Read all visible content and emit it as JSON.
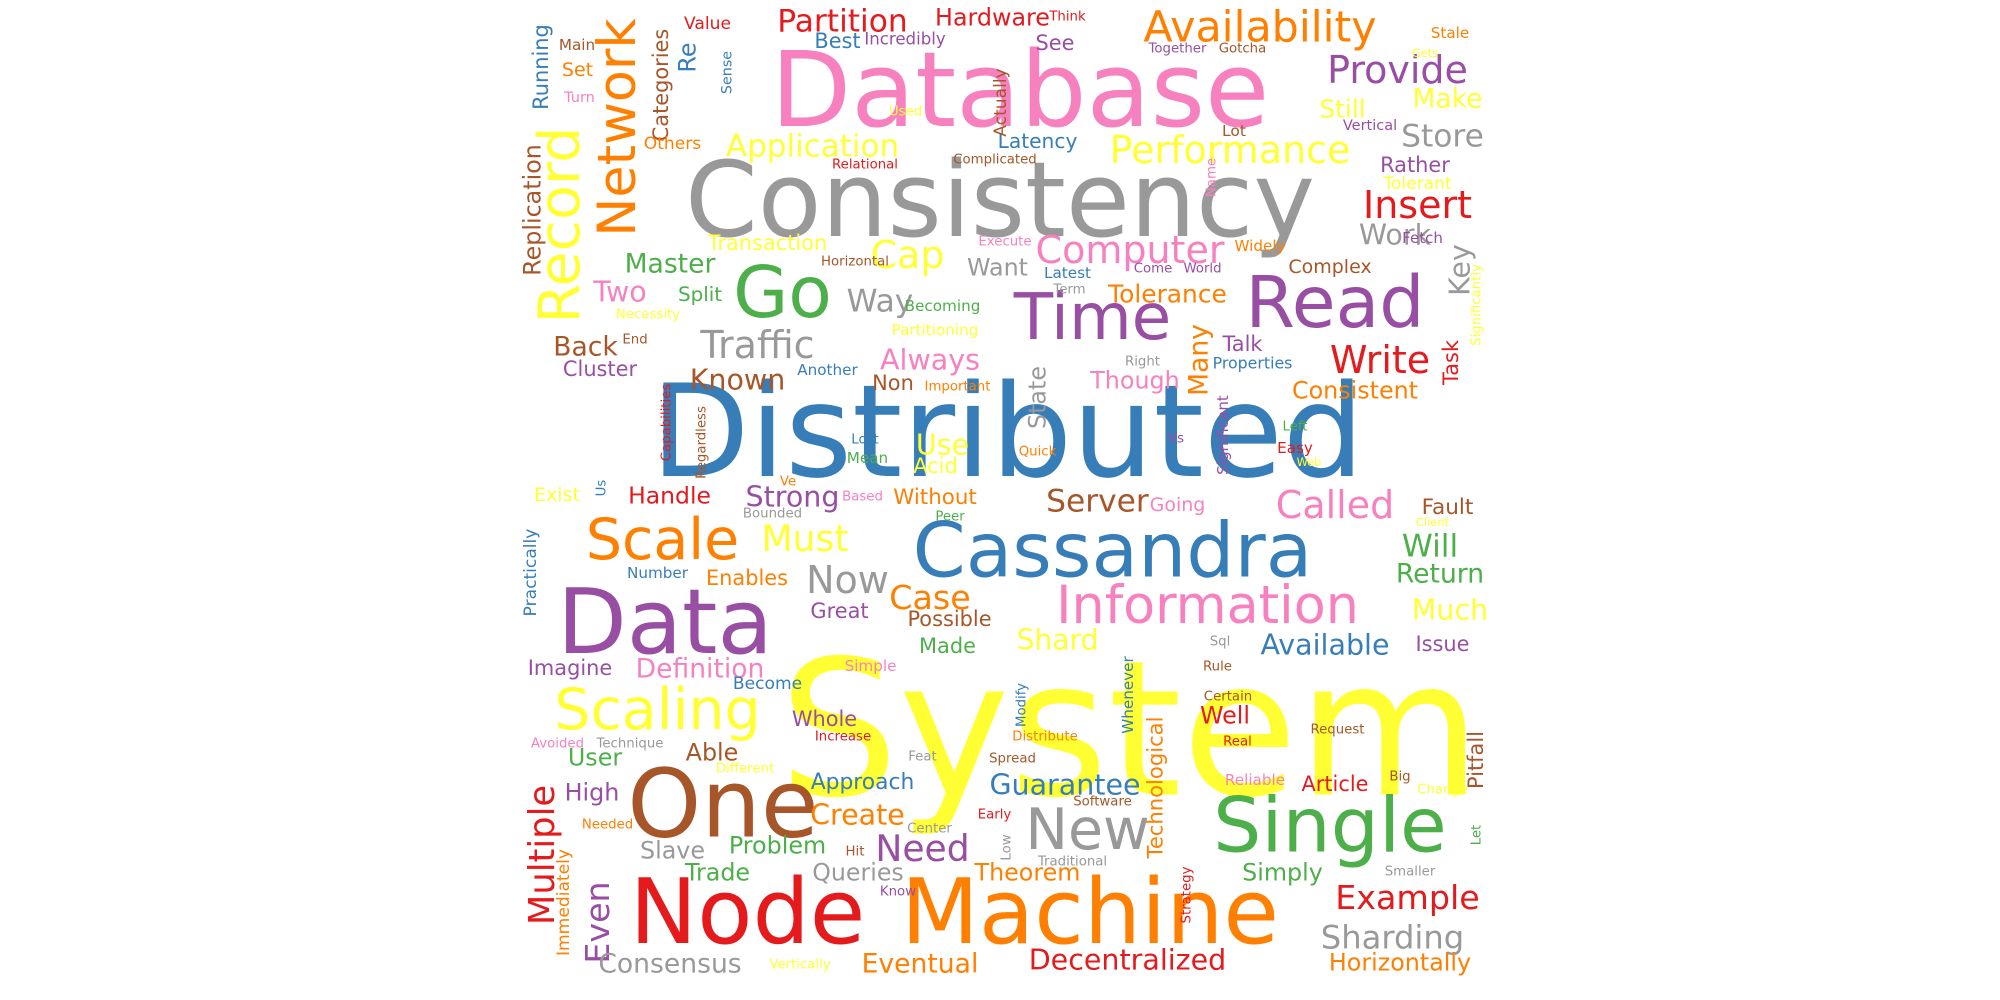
{
  "words": [
    {
      "text": "System",
      "color": "#ffff33"
    },
    {
      "text": "Distributed",
      "color": "#377eb8"
    },
    {
      "text": "Database",
      "color": "#f781bf"
    },
    {
      "text": "Consistency",
      "color": "#999999"
    },
    {
      "text": "Node",
      "color": "#e41a1c"
    },
    {
      "text": "Machine",
      "color": "#ff7f00"
    },
    {
      "text": "Data",
      "color": "#984ea3"
    },
    {
      "text": "Cassandra",
      "color": "#377eb8"
    },
    {
      "text": "One",
      "color": "#a65628"
    },
    {
      "text": "Single",
      "color": "#4daf4a"
    },
    {
      "text": "Time",
      "color": "#984ea3"
    },
    {
      "text": "Read",
      "color": "#984ea3"
    },
    {
      "text": "Information",
      "color": "#f781bf"
    },
    {
      "text": "Network",
      "color": "#ff7f00"
    },
    {
      "text": "Record",
      "color": "#ffff33"
    },
    {
      "text": "Go",
      "color": "#4daf4a"
    },
    {
      "text": "Scale",
      "color": "#ff7f00"
    },
    {
      "text": "Scaling",
      "color": "#ffff33"
    },
    {
      "text": "New",
      "color": "#999999"
    },
    {
      "text": "Availability",
      "color": "#ff7f00"
    },
    {
      "text": "Performance",
      "color": "#ffff33"
    },
    {
      "text": "Computer",
      "color": "#f781bf"
    },
    {
      "text": "Traffic",
      "color": "#999999"
    },
    {
      "text": "Write",
      "color": "#e41a1c"
    },
    {
      "text": "Called",
      "color": "#f781bf"
    },
    {
      "text": "Provide",
      "color": "#984ea3"
    },
    {
      "text": "Insert",
      "color": "#e41a1c"
    },
    {
      "text": "Example",
      "color": "#e41a1c"
    },
    {
      "text": "Sharding",
      "color": "#999999"
    },
    {
      "text": "Decentralized",
      "color": "#e41a1c"
    },
    {
      "text": "Multiple",
      "color": "#e41a1c"
    },
    {
      "text": "Even",
      "color": "#984ea3"
    },
    {
      "text": "Cap",
      "color": "#ffff33"
    },
    {
      "text": "Partition",
      "color": "#e41a1c"
    },
    {
      "text": "Application",
      "color": "#ffff33"
    },
    {
      "text": "Must",
      "color": "#ffff33"
    },
    {
      "text": "Now",
      "color": "#999999"
    },
    {
      "text": "Server",
      "color": "#a65628"
    },
    {
      "text": "Will",
      "color": "#4daf4a"
    },
    {
      "text": "Case",
      "color": "#ff7f00"
    },
    {
      "text": "Need",
      "color": "#984ea3"
    },
    {
      "text": "Available",
      "color": "#377eb8"
    },
    {
      "text": "Guarantee",
      "color": "#377eb8"
    },
    {
      "text": "Shard",
      "color": "#ffff33"
    },
    {
      "text": "Way",
      "color": "#999999"
    },
    {
      "text": "Much",
      "color": "#ffff33"
    },
    {
      "text": "Create",
      "color": "#ff7f00"
    },
    {
      "text": "Consensus",
      "color": "#999999"
    },
    {
      "text": "Eventual",
      "color": "#ff7f00"
    },
    {
      "text": "Horizontally",
      "color": "#ff7f00"
    },
    {
      "text": "Theorem",
      "color": "#ff7f00"
    },
    {
      "text": "Always",
      "color": "#f781bf"
    },
    {
      "text": "Tolerance",
      "color": "#ff7f00"
    },
    {
      "text": "Strong",
      "color": "#984ea3"
    },
    {
      "text": "Known",
      "color": "#a65628"
    },
    {
      "text": "Use",
      "color": "#ffff33"
    },
    {
      "text": "Definition",
      "color": "#f781bf"
    },
    {
      "text": "Simply",
      "color": "#4daf4a"
    },
    {
      "text": "Many",
      "color": "#ff7f00"
    },
    {
      "text": "Technological",
      "color": "#ff7f00"
    },
    {
      "text": "Store",
      "color": "#999999"
    },
    {
      "text": "Make",
      "color": "#ffff33"
    },
    {
      "text": "Still",
      "color": "#ffff33"
    },
    {
      "text": "Hardware",
      "color": "#e41a1c"
    },
    {
      "text": "Return",
      "color": "#4daf4a"
    },
    {
      "text": "Fault",
      "color": "#a65628"
    },
    {
      "text": "Work",
      "color": "#999999"
    },
    {
      "text": "Master",
      "color": "#4daf4a"
    },
    {
      "text": "Back",
      "color": "#a65628"
    },
    {
      "text": "Key",
      "color": "#999999"
    },
    {
      "text": "Replication",
      "color": "#a65628"
    },
    {
      "text": "Transaction",
      "color": "#ffff33"
    },
    {
      "text": "Split",
      "color": "#4daf4a"
    },
    {
      "text": "Two",
      "color": "#f781bf"
    },
    {
      "text": "Queries",
      "color": "#999999"
    },
    {
      "text": "Slave",
      "color": "#999999"
    },
    {
      "text": "Problem",
      "color": "#4daf4a"
    },
    {
      "text": "Trade",
      "color": "#4daf4a"
    },
    {
      "text": "Approach",
      "color": "#377eb8"
    },
    {
      "text": "User",
      "color": "#4daf4a"
    },
    {
      "text": "High",
      "color": "#984ea3"
    },
    {
      "text": "Able",
      "color": "#a65628"
    },
    {
      "text": "Latency",
      "color": "#377eb8"
    },
    {
      "text": "Consistent",
      "color": "#ff7f00"
    },
    {
      "text": "Handle",
      "color": "#e41a1c"
    },
    {
      "text": "Without",
      "color": "#ff7f00"
    },
    {
      "text": "Acid",
      "color": "#ffff33"
    },
    {
      "text": "Though",
      "color": "#f781bf"
    },
    {
      "text": "Want",
      "color": "#999999"
    },
    {
      "text": "Categories",
      "color": "#a65628"
    },
    {
      "text": "Issue",
      "color": "#984ea3"
    },
    {
      "text": "Article",
      "color": "#e41a1c"
    },
    {
      "text": "Well",
      "color": "#e41a1c"
    },
    {
      "text": "Task",
      "color": "#e41a1c"
    },
    {
      "text": "Pitfall",
      "color": "#a65628"
    },
    {
      "text": "Talk",
      "color": "#984ea3"
    },
    {
      "text": "Imagine",
      "color": "#984ea3"
    },
    {
      "text": "Enables",
      "color": "#ff7f00"
    },
    {
      "text": "Possible",
      "color": "#a65628"
    },
    {
      "text": "Made",
      "color": "#4daf4a"
    },
    {
      "text": "Great",
      "color": "#984ea3"
    },
    {
      "text": "Whole",
      "color": "#984ea3"
    },
    {
      "text": "Best",
      "color": "#377eb8"
    },
    {
      "text": "See",
      "color": "#984ea3"
    },
    {
      "text": "Complex",
      "color": "#a65628"
    },
    {
      "text": "Rather",
      "color": "#984ea3"
    },
    {
      "text": "Non",
      "color": "#a65628"
    },
    {
      "text": "Cluster",
      "color": "#984ea3"
    },
    {
      "text": "Properties",
      "color": "#377eb8"
    },
    {
      "text": "State",
      "color": "#999999"
    },
    {
      "text": "Running",
      "color": "#377eb8"
    },
    {
      "text": "Re",
      "color": "#377eb8"
    },
    {
      "text": "Value",
      "color": "#e41a1c"
    },
    {
      "text": "Incredibly",
      "color": "#984ea3"
    },
    {
      "text": "Others",
      "color": "#ff7f00"
    },
    {
      "text": "Tolerant",
      "color": "#ffff33"
    },
    {
      "text": "Vertical",
      "color": "#984ea3"
    },
    {
      "text": "Lot",
      "color": "#a65628"
    },
    {
      "text": "Going",
      "color": "#f781bf"
    },
    {
      "text": "Become",
      "color": "#377eb8"
    },
    {
      "text": "Number",
      "color": "#377eb8"
    },
    {
      "text": "Exist",
      "color": "#ffff33"
    },
    {
      "text": "Practically",
      "color": "#377eb8"
    },
    {
      "text": "Immediately",
      "color": "#ff7f00"
    },
    {
      "text": "Set",
      "color": "#ff7f00"
    },
    {
      "text": "Main",
      "color": "#a65628"
    },
    {
      "text": "Turn",
      "color": "#f781bf"
    },
    {
      "text": "Think",
      "color": "#e41a1c"
    },
    {
      "text": "Together",
      "color": "#984ea3"
    },
    {
      "text": "Gotcha",
      "color": "#a65628"
    },
    {
      "text": "Stale",
      "color": "#ff7f00"
    },
    {
      "text": "Gets",
      "color": "#ffff33"
    },
    {
      "text": "Sense",
      "color": "#377eb8"
    },
    {
      "text": "Used",
      "color": "#ffff33"
    },
    {
      "text": "Actually",
      "color": "#a65628"
    },
    {
      "text": "Relational",
      "color": "#e41a1c"
    },
    {
      "text": "Complicated",
      "color": "#a65628"
    },
    {
      "text": "Name",
      "color": "#f781bf"
    },
    {
      "text": "Execute",
      "color": "#f781bf"
    },
    {
      "text": "Horizontal",
      "color": "#a65628"
    },
    {
      "text": "Latest",
      "color": "#377eb8"
    },
    {
      "text": "Come",
      "color": "#984ea3"
    },
    {
      "text": "World",
      "color": "#984ea3"
    },
    {
      "text": "Term",
      "color": "#999999"
    },
    {
      "text": "Widely",
      "color": "#ff7f00"
    },
    {
      "text": "Fetch",
      "color": "#984ea3"
    },
    {
      "text": "Significantly",
      "color": "#ffff33"
    },
    {
      "text": "Necessity",
      "color": "#ffff33"
    },
    {
      "text": "Becoming",
      "color": "#4daf4a"
    },
    {
      "text": "Partitioning",
      "color": "#ffff33"
    },
    {
      "text": "End",
      "color": "#a65628"
    },
    {
      "text": "Another",
      "color": "#377eb8"
    },
    {
      "text": "Important",
      "color": "#ff7f00"
    },
    {
      "text": "Right",
      "color": "#999999"
    },
    {
      "text": "Capabilities",
      "color": "#e41a1c"
    },
    {
      "text": "Regardless",
      "color": "#a65628"
    },
    {
      "text": "Lost",
      "color": "#377eb8"
    },
    {
      "text": "Mean",
      "color": "#4daf4a"
    },
    {
      "text": "Significant",
      "color": "#984ea3"
    },
    {
      "text": "Left",
      "color": "#4daf4a"
    },
    {
      "text": "Easy",
      "color": "#e41a1c"
    },
    {
      "text": "Web",
      "color": "#ffff33"
    },
    {
      "text": "Vs",
      "color": "#984ea3"
    },
    {
      "text": "Quick",
      "color": "#ff7f00"
    },
    {
      "text": "Us",
      "color": "#377eb8"
    },
    {
      "text": "Ve",
      "color": "#ff7f00"
    },
    {
      "text": "Based",
      "color": "#f781bf"
    },
    {
      "text": "Bounded",
      "color": "#999999"
    },
    {
      "text": "Peer",
      "color": "#4daf4a"
    },
    {
      "text": "Client",
      "color": "#ffff33"
    },
    {
      "text": "Simple",
      "color": "#f781bf"
    },
    {
      "text": "Sql",
      "color": "#999999"
    },
    {
      "text": "Rule",
      "color": "#a65628"
    },
    {
      "text": "Modify",
      "color": "#377eb8"
    },
    {
      "text": "Whenever",
      "color": "#377eb8"
    },
    {
      "text": "Certain",
      "color": "#a65628"
    },
    {
      "text": "Real",
      "color": "#e41a1c"
    },
    {
      "text": "Request",
      "color": "#a65628"
    },
    {
      "text": "Avoided",
      "color": "#f781bf"
    },
    {
      "text": "Technique",
      "color": "#999999"
    },
    {
      "text": "Increase",
      "color": "#e41a1c"
    },
    {
      "text": "Distribute",
      "color": "#ff7f00"
    },
    {
      "text": "Feat",
      "color": "#999999"
    },
    {
      "text": "Spread",
      "color": "#a65628"
    },
    {
      "text": "Different",
      "color": "#ffff33"
    },
    {
      "text": "Reliable",
      "color": "#f781bf"
    },
    {
      "text": "Big",
      "color": "#a65628"
    },
    {
      "text": "Change",
      "color": "#ffff33"
    },
    {
      "text": "Software",
      "color": "#a65628"
    },
    {
      "text": "Early",
      "color": "#e41a1c"
    },
    {
      "text": "Center",
      "color": "#999999"
    },
    {
      "text": "Low",
      "color": "#999999"
    },
    {
      "text": "Let",
      "color": "#4daf4a"
    },
    {
      "text": "Needed",
      "color": "#ff7f00"
    },
    {
      "text": "Hit",
      "color": "#a65628"
    },
    {
      "text": "Traditional",
      "color": "#999999"
    },
    {
      "text": "Smaller",
      "color": "#999999"
    },
    {
      "text": "Know",
      "color": "#984ea3"
    },
    {
      "text": "Strategy",
      "color": "#e41a1c"
    },
    {
      "text": "Vertically",
      "color": "#ffff33"
    }
  ]
}
